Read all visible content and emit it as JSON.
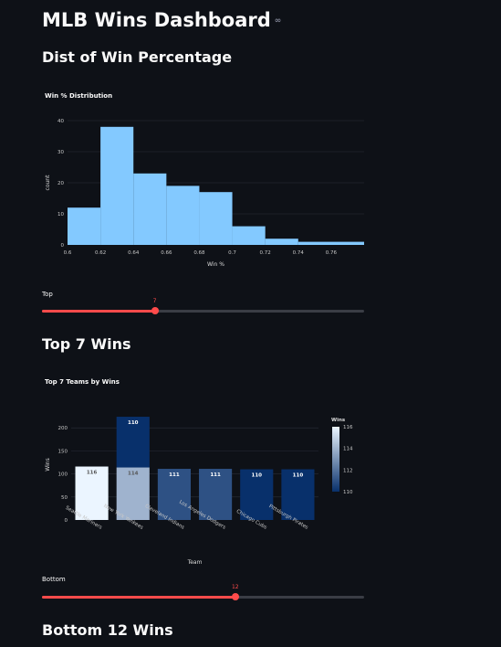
{
  "page": {
    "title": "MLB Wins Dashboard",
    "link_icon": "link-icon",
    "section1_header": "Dist of Win Percentage",
    "section2_header": "Top 7 Wins",
    "section3_header": "Bottom 12 Wins"
  },
  "sliders": {
    "top": {
      "label": "Top",
      "value": "7",
      "min": 1,
      "max": 20,
      "fraction": 0.35
    },
    "bottom": {
      "label": "Bottom",
      "value": "12",
      "min": 1,
      "max": 20,
      "fraction": 0.6
    }
  },
  "colors": {
    "background": "#0e1117",
    "histogram_bar": "#83c9ff",
    "slider_accent": "#ff4b4b"
  },
  "chart_data": [
    {
      "type": "bar",
      "title": "Win % Distribution",
      "xlabel": "Win %",
      "ylabel": "count",
      "bins": [
        {
          "x0": 0.6,
          "x1": 0.62,
          "count": 12
        },
        {
          "x0": 0.62,
          "x1": 0.64,
          "count": 38
        },
        {
          "x0": 0.64,
          "x1": 0.66,
          "count": 23
        },
        {
          "x0": 0.66,
          "x1": 0.68,
          "count": 19
        },
        {
          "x0": 0.68,
          "x1": 0.7,
          "count": 17
        },
        {
          "x0": 0.7,
          "x1": 0.72,
          "count": 6
        },
        {
          "x0": 0.72,
          "x1": 0.74,
          "count": 2
        },
        {
          "x0": 0.74,
          "x1": 0.78,
          "count": 1
        }
      ],
      "xlim": [
        0.6,
        0.78
      ],
      "ylim": [
        0,
        40
      ],
      "xticks": [
        "0.6",
        "0.62",
        "0.64",
        "0.66",
        "0.68",
        "0.7",
        "0.72",
        "0.74",
        "0.76"
      ],
      "yticks": [
        "0",
        "10",
        "20",
        "30",
        "40"
      ],
      "grid": true
    },
    {
      "type": "bar",
      "title": "Top 7 Teams by Wins",
      "xlabel": "Team",
      "ylabel": "Wins",
      "colorbar_title": "Wins",
      "colorbar_ticks": [
        "116",
        "114",
        "112",
        "110"
      ],
      "color_range": [
        110,
        116
      ],
      "categories": [
        "Seattle Mariners",
        "New York Yankees",
        "Cleveland Indians",
        "Los Angeles Dodgers",
        "Chicago Cubs",
        "Pittsburgh Pirates"
      ],
      "stacks": [
        [
          {
            "value": 116,
            "label": "116"
          }
        ],
        [
          {
            "value": 114,
            "label": "114"
          },
          {
            "value": 110,
            "label": "110"
          }
        ],
        [
          {
            "value": 111,
            "label": "111"
          }
        ],
        [
          {
            "value": 111,
            "label": "111"
          }
        ],
        [
          {
            "value": 110,
            "label": "110"
          }
        ],
        [
          {
            "value": 110,
            "label": "110"
          }
        ]
      ],
      "ylim": [
        0,
        240
      ],
      "yticks": [
        "0",
        "50",
        "100",
        "150",
        "200"
      ],
      "grid": true
    }
  ]
}
